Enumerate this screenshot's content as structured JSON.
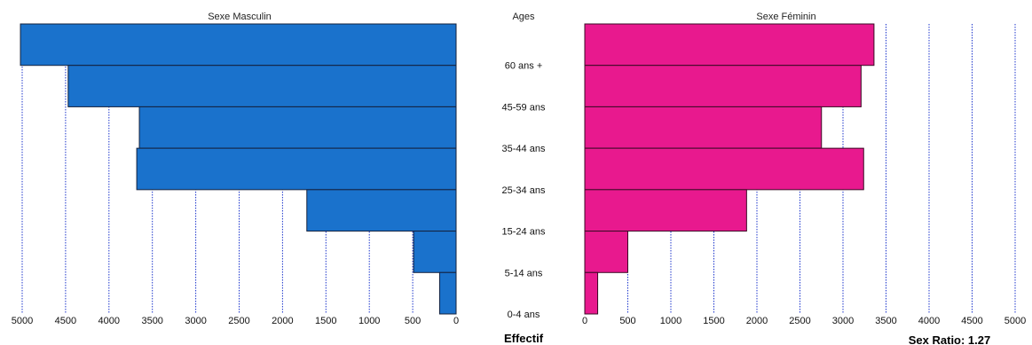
{
  "chart_data": {
    "type": "bar",
    "orientation": "horizontal",
    "layout": "population-pyramid",
    "categories_label": "Ages",
    "categories_top_to_bottom": [
      "60 ans +",
      "45-59 ans",
      "35-44 ans",
      "25-34 ans",
      "15-24 ans",
      "5-14 ans",
      "0-4 ans"
    ],
    "series": [
      {
        "name": "Sexe Masculin",
        "side": "left",
        "color": "#1a72cc",
        "values": [
          5020,
          4470,
          3650,
          3680,
          1720,
          490,
          190
        ]
      },
      {
        "name": "Sexe Féminin",
        "side": "right",
        "color": "#e8198e",
        "values": [
          3360,
          3210,
          2750,
          3240,
          1880,
          500,
          150
        ]
      }
    ],
    "xlim": [
      0,
      5000
    ],
    "xticks": [
      0,
      500,
      1000,
      1500,
      2000,
      2500,
      3000,
      3500,
      4000,
      4500,
      5000
    ],
    "xlabel": "Effectif",
    "grid": "vertical-dotted",
    "gridline_color": "#1c35cc",
    "annotation": "Sex Ratio: 1.27"
  }
}
